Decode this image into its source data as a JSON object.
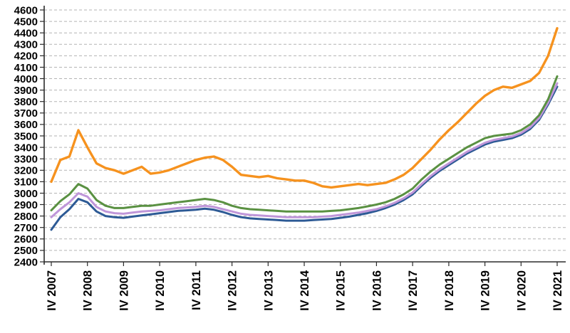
{
  "chart_data": {
    "type": "line",
    "title": "",
    "background": "#ffffff",
    "grid": {
      "style": "dashed",
      "color": "#b3b3b3"
    },
    "axis_color": "#2b2b2b",
    "legend": "none",
    "ylim": [
      2400,
      4600
    ],
    "y_tick_step": 100,
    "y_tick_labels": [
      "4600",
      "4500",
      "4400",
      "4300",
      "4200",
      "4100",
      "4000",
      "3900",
      "3800",
      "3700",
      "3600",
      "3500",
      "3400",
      "3300",
      "3200",
      "3100",
      "3000",
      "2900",
      "2800",
      "2700",
      "2600",
      "2500",
      "2400"
    ],
    "x_tick_labels": [
      "IV 2007",
      "IV 2008",
      "IV 2009",
      "IV 2010",
      "IV 2011",
      "IV 2012",
      "IV 2013",
      "IV 2014",
      "IV 2015",
      "IV 2016",
      "IV 2017",
      "IV 2018",
      "IV 2019",
      "IV 2020",
      "IV 2021"
    ],
    "points_per_tick_interval": 4,
    "n_points": 57,
    "series": [
      {
        "name": "orange-series",
        "color": "#f6921e",
        "stroke_width": 3.4,
        "values": [
          3100,
          3290,
          3320,
          3550,
          3400,
          3260,
          3220,
          3200,
          3170,
          3200,
          3230,
          3170,
          3180,
          3200,
          3230,
          3260,
          3290,
          3310,
          3320,
          3290,
          3230,
          3160,
          3150,
          3140,
          3150,
          3130,
          3120,
          3110,
          3110,
          3090,
          3060,
          3050,
          3060,
          3070,
          3080,
          3070,
          3080,
          3090,
          3120,
          3160,
          3220,
          3300,
          3380,
          3470,
          3550,
          3620,
          3700,
          3780,
          3850,
          3900,
          3930,
          3920,
          3950,
          3980,
          4050,
          4200,
          4440
        ]
      },
      {
        "name": "green-series",
        "color": "#5a9142",
        "stroke_width": 3,
        "values": [
          2850,
          2930,
          2990,
          3080,
          3040,
          2940,
          2890,
          2870,
          2870,
          2880,
          2890,
          2890,
          2900,
          2910,
          2920,
          2930,
          2940,
          2950,
          2940,
          2920,
          2890,
          2870,
          2860,
          2855,
          2850,
          2845,
          2840,
          2840,
          2840,
          2840,
          2840,
          2845,
          2850,
          2860,
          2870,
          2885,
          2900,
          2920,
          2950,
          2990,
          3040,
          3120,
          3190,
          3250,
          3300,
          3350,
          3400,
          3440,
          3480,
          3500,
          3510,
          3520,
          3550,
          3600,
          3680,
          3820,
          4020
        ]
      },
      {
        "name": "violet-series",
        "color": "#bf96d9",
        "stroke_width": 3,
        "values": [
          2790,
          2860,
          2920,
          3000,
          2970,
          2880,
          2840,
          2825,
          2820,
          2830,
          2840,
          2845,
          2850,
          2860,
          2870,
          2875,
          2880,
          2890,
          2880,
          2860,
          2840,
          2820,
          2810,
          2805,
          2800,
          2795,
          2790,
          2790,
          2790,
          2790,
          2795,
          2800,
          2810,
          2820,
          2830,
          2845,
          2860,
          2885,
          2915,
          2955,
          3005,
          3080,
          3150,
          3210,
          3260,
          3310,
          3360,
          3400,
          3440,
          3465,
          3480,
          3495,
          3525,
          3575,
          3655,
          3790,
          3960
        ]
      },
      {
        "name": "navy-series",
        "color": "#2d5a95",
        "stroke_width": 3,
        "values": [
          2680,
          2790,
          2860,
          2950,
          2920,
          2840,
          2800,
          2790,
          2785,
          2795,
          2805,
          2815,
          2825,
          2835,
          2845,
          2850,
          2855,
          2865,
          2855,
          2835,
          2810,
          2790,
          2780,
          2775,
          2770,
          2765,
          2760,
          2760,
          2760,
          2765,
          2770,
          2775,
          2785,
          2795,
          2810,
          2825,
          2845,
          2870,
          2900,
          2940,
          2990,
          3065,
          3135,
          3195,
          3245,
          3295,
          3345,
          3385,
          3425,
          3450,
          3465,
          3480,
          3510,
          3560,
          3640,
          3775,
          3930
        ]
      }
    ]
  }
}
